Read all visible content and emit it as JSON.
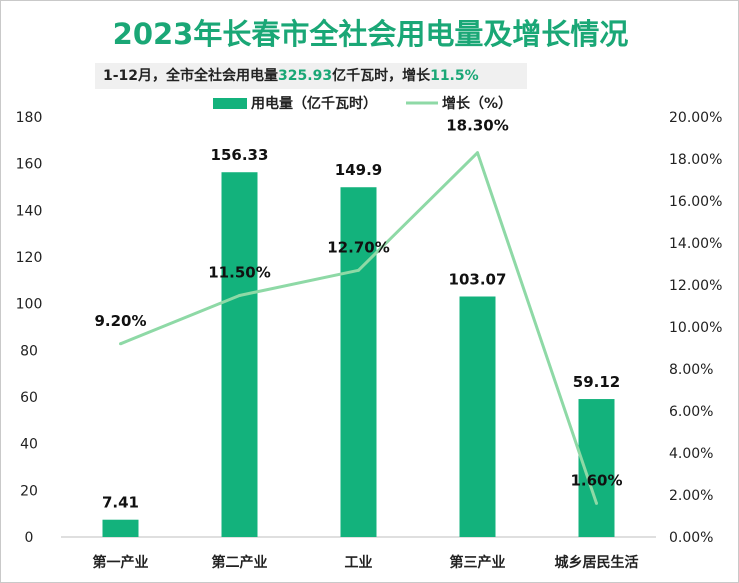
{
  "title": "2023年长春市全社会用电量及增长情况",
  "subtitle": {
    "part1": "1-12月，全市全社会用电量",
    "value": "325.93",
    "part2": "亿千瓦时，增长",
    "growth": "11.5%"
  },
  "colors": {
    "bar": "#13b27c",
    "line": "#8ed9a6",
    "title": "#1aa776"
  },
  "chart_data": {
    "type": "bar",
    "categories": [
      "第一产业",
      "第二产业",
      "工业",
      "第三产业",
      "城乡居民生活"
    ],
    "series": [
      {
        "name": "用电量（亿千瓦时）",
        "type": "bar",
        "axis": "left",
        "values": [
          7.41,
          156.33,
          149.9,
          103.07,
          59.12
        ],
        "labels": [
          "7.41",
          "156.33",
          "149.9",
          "103.07",
          "59.12"
        ]
      },
      {
        "name": "增长（%）",
        "type": "line",
        "axis": "right",
        "values": [
          9.2,
          11.5,
          12.7,
          18.3,
          1.6
        ],
        "labels": [
          "9.20%",
          "11.50%",
          "12.70%",
          "18.30%",
          "1.60%"
        ]
      }
    ],
    "y_left": {
      "range": [
        0,
        180
      ],
      "ticks": [
        "0",
        "20",
        "40",
        "60",
        "80",
        "100",
        "120",
        "140",
        "160",
        "180"
      ]
    },
    "y_right": {
      "range": [
        0,
        20
      ],
      "ticks": [
        "0.00%",
        "2.00%",
        "4.00%",
        "6.00%",
        "8.00%",
        "10.00%",
        "12.00%",
        "14.00%",
        "16.00%",
        "18.00%",
        "20.00%"
      ]
    },
    "legend_position": "top-center",
    "grid": false
  }
}
